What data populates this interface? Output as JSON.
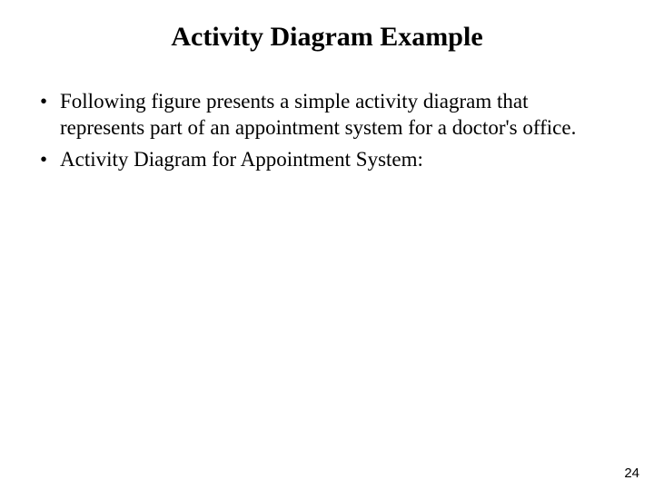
{
  "slide": {
    "title": "Activity Diagram Example",
    "bullets": [
      "Following figure presents a simple activity diagram that represents part of an appointment system for a doctor's office.",
      "Activity Diagram for Appointment System:"
    ],
    "page_number": "24"
  },
  "style": {
    "background_color": "#ffffff",
    "text_color": "#000000",
    "title_fontsize": 30,
    "title_fontweight": "bold",
    "body_fontsize": 23,
    "pagenum_fontsize": 15,
    "font_family": "Times New Roman"
  }
}
